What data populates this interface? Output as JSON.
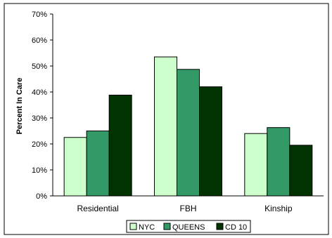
{
  "chart_data": {
    "type": "bar",
    "title": "",
    "xlabel": "",
    "ylabel": "Percent In Care",
    "ylim": [
      0,
      70
    ],
    "yticks": [
      "0%",
      "10%",
      "20%",
      "30%",
      "40%",
      "50%",
      "60%",
      "70%"
    ],
    "categories": [
      "Residential",
      "FBH",
      "Kinship"
    ],
    "series": [
      {
        "name": "NYC",
        "values": [
          22.5,
          53.5,
          24
        ],
        "color": "#ccffcc"
      },
      {
        "name": "QUEENS",
        "values": [
          25,
          48.7,
          26.3
        ],
        "color": "#339966"
      },
      {
        "name": "CD 10",
        "values": [
          38.8,
          42,
          19.5
        ],
        "color": "#003300"
      }
    ],
    "grid": false,
    "legend": "bottom"
  }
}
